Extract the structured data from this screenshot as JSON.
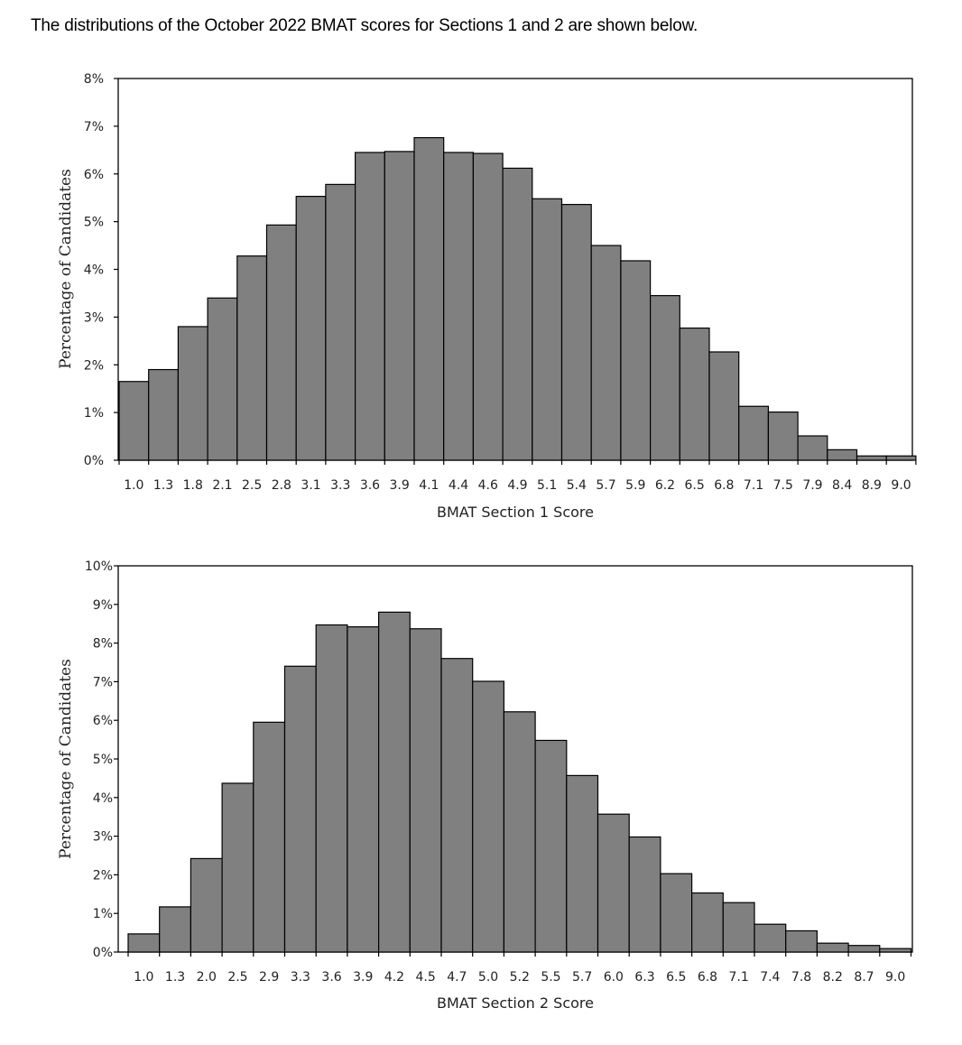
{
  "intro_text": "The distributions of the October 2022 BMAT scores for Sections 1 and 2 are shown below.",
  "colors": {
    "bar_fill": "#808080",
    "bar_stroke": "#000000",
    "frame": "#000000",
    "text": "#222222"
  },
  "chart_data": [
    {
      "type": "bar",
      "title": "",
      "xlabel": "BMAT Section 1 Score",
      "ylabel": "Percentage of Candidates",
      "ylim": [
        0,
        8
      ],
      "y_ticks": [
        0,
        1,
        2,
        3,
        4,
        5,
        6,
        7,
        8
      ],
      "y_tick_labels": [
        "0%",
        "1%",
        "2%",
        "3%",
        "4%",
        "5%",
        "6%",
        "7%",
        "8%"
      ],
      "grid": false,
      "legend": "none",
      "tick_labels": [
        "1.0",
        "1.3",
        "1.8",
        "2.1",
        "2.5",
        "2.8",
        "3.1",
        "3.3",
        "3.6",
        "3.9",
        "4.1",
        "4.4",
        "4.6",
        "4.9",
        "5.1",
        "5.4",
        "5.7",
        "5.9",
        "6.2",
        "6.5",
        "6.8",
        "7.1",
        "7.5",
        "7.9",
        "8.4",
        "8.9",
        "9.0"
      ],
      "values": [
        1.65,
        1.9,
        2.8,
        3.4,
        4.28,
        4.93,
        5.53,
        5.78,
        6.45,
        6.47,
        6.76,
        6.45,
        6.43,
        6.12,
        5.48,
        5.36,
        4.5,
        4.18,
        3.45,
        2.77,
        2.27,
        1.13,
        1.01,
        0.51,
        0.22,
        0.09,
        0.09
      ]
    },
    {
      "type": "bar",
      "title": "",
      "xlabel": "BMAT Section 2 Score",
      "ylabel": "Percentage of Candidates",
      "ylim": [
        0,
        10
      ],
      "y_ticks": [
        0,
        1,
        2,
        3,
        4,
        5,
        6,
        7,
        8,
        9,
        10
      ],
      "y_tick_labels": [
        "0%",
        "1%",
        "2%",
        "3%",
        "4%",
        "5%",
        "6%",
        "7%",
        "8%",
        "9%",
        "10%"
      ],
      "grid": false,
      "legend": "none",
      "tick_labels": [
        "1.0",
        "1.3",
        "2.0",
        "2.5",
        "2.9",
        "3.3",
        "3.6",
        "3.9",
        "4.2",
        "4.5",
        "4.7",
        "5.0",
        "5.2",
        "5.5",
        "5.7",
        "6.0",
        "6.3",
        "6.5",
        "6.8",
        "7.1",
        "7.4",
        "7.8",
        "8.2",
        "8.7",
        "9.0"
      ],
      "values": [
        0.47,
        1.17,
        2.42,
        4.37,
        5.95,
        7.4,
        8.47,
        8.42,
        8.8,
        8.37,
        7.6,
        7.01,
        6.22,
        5.48,
        4.57,
        3.57,
        2.98,
        2.03,
        1.53,
        1.28,
        0.72,
        0.55,
        0.23,
        0.17,
        0.09
      ]
    }
  ]
}
